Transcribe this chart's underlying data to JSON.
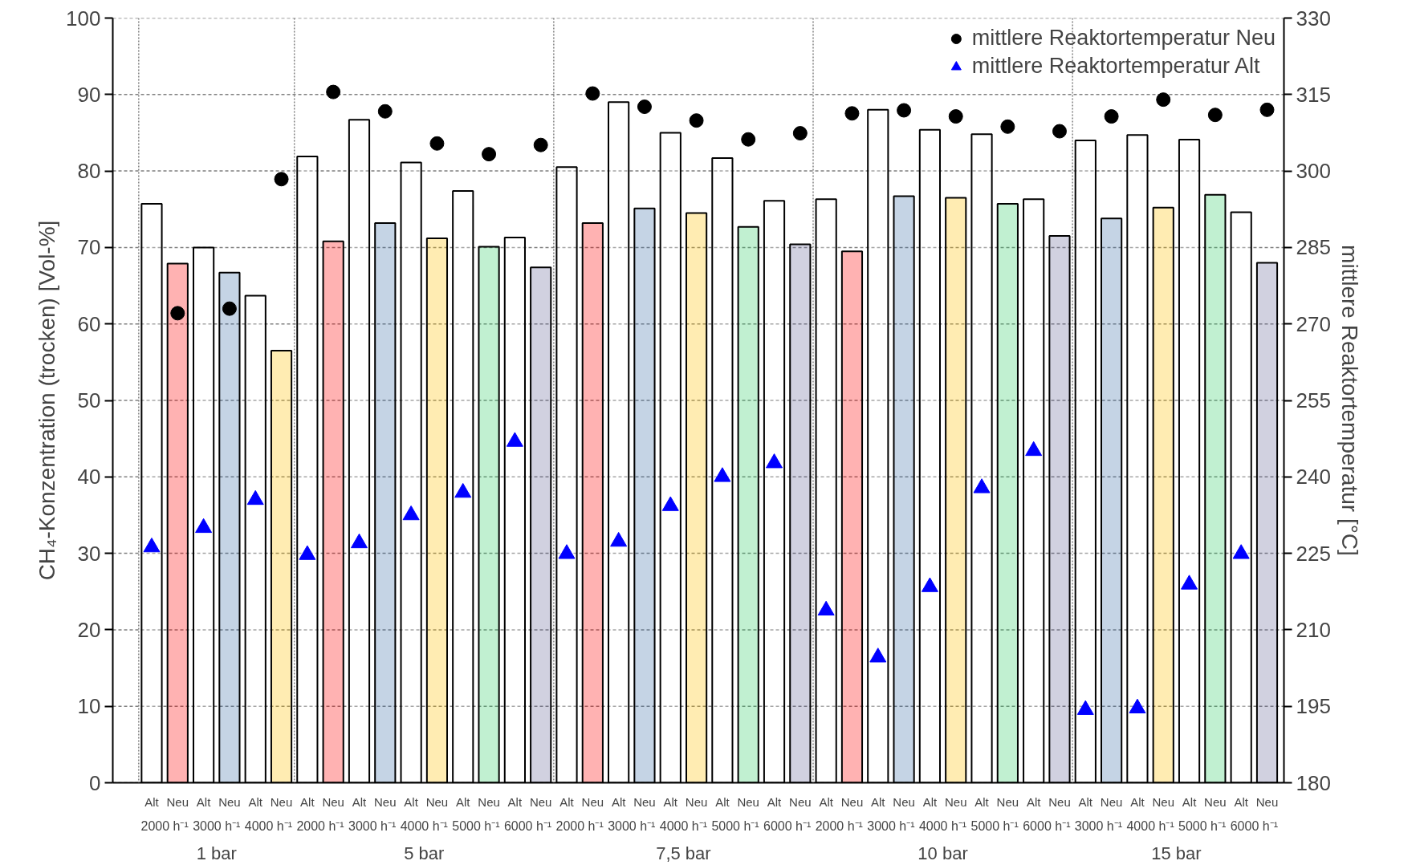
{
  "chart_data": {
    "type": "bar",
    "ylabel": "CH₄-Konzentration (trocken) [Vol-%]",
    "y2label": "mittlere Reaktortemperatur [°C]",
    "legend": "top right",
    "grid": "y",
    "categories": [
      "Alt",
      "Neu",
      "Alt",
      "Neu",
      "Alt",
      "Neu",
      "Alt",
      "Neu",
      "Alt",
      "Neu",
      "Alt",
      "Neu",
      "Alt",
      "Neu",
      "Alt",
      "Neu",
      "Alt",
      "Neu",
      "Alt",
      "Neu",
      "Alt",
      "Neu",
      "Alt",
      "Neu",
      "Alt",
      "Neu",
      "Alt",
      "Neu",
      "Alt",
      "Neu",
      "Alt",
      "Neu",
      "Alt",
      "Neu",
      "Alt",
      "Neu",
      "Alt",
      "Neu",
      "Alt",
      "Neu",
      "Alt",
      "Neu",
      "Alt",
      "Neu"
    ],
    "annotations": [
      "2000 h⁻¹",
      "3000 h⁻¹",
      "4000 h⁻¹",
      "2000 h⁻¹",
      "3000 h⁻¹",
      "4000 h⁻¹",
      "5000 h⁻¹",
      "6000 h⁻¹",
      "2000 h⁻¹",
      "3000 h⁻¹",
      "4000 h⁻¹",
      "5000 h⁻¹",
      "6000 h⁻¹",
      "2000 h⁻¹",
      "3000 h⁻¹",
      "4000 h⁻¹",
      "5000 h⁻¹",
      "6000 h⁻¹",
      "3000 h⁻¹",
      "4000 h⁻¹",
      "5000 h⁻¹",
      "6000 h⁻¹",
      "1 bar",
      "5 bar",
      "7,5 bar",
      "10 bar",
      "15 bar"
    ],
    "ylim": [
      0,
      100
    ],
    "yticks": [
      0,
      10,
      20,
      30,
      40,
      50,
      60,
      70,
      80,
      90,
      100
    ],
    "y2lim": [
      180,
      330
    ],
    "y2ticks": [
      180,
      195,
      210,
      225,
      240,
      255,
      270,
      285,
      300,
      315,
      330
    ],
    "series": [
      {
        "color": "#ffffff",
        "values": [
          75.7,
          null,
          70.0,
          null,
          63.7,
          null,
          81.9,
          null,
          86.7,
          null,
          81.1,
          null,
          77.4,
          null,
          71.3,
          null,
          80.5,
          null,
          89.0,
          null,
          85.0,
          null,
          81.7,
          null,
          76.1,
          null,
          76.3,
          null,
          88.0,
          null,
          85.4,
          null,
          84.8,
          null,
          76.3,
          null,
          84.0,
          null,
          84.7,
          null,
          84.1,
          null,
          74.6,
          null
        ]
      },
      {
        "colors": [
          null,
          "#ff0000",
          null,
          "#3f6fa8",
          null,
          "#ffc000",
          null,
          "#ff0000",
          null,
          "#3f6fa8",
          null,
          "#ffc000",
          null,
          "#33cc66",
          null,
          "#666699",
          null,
          "#ff0000",
          null,
          "#3f6fa8",
          null,
          "#ffc000",
          null,
          "#33cc66",
          null,
          "#666699",
          null,
          "#ff0000",
          null,
          "#3f6fa8",
          null,
          "#ffc000",
          null,
          "#33cc66",
          null,
          "#666699",
          null,
          "#3f6fa8",
          null,
          "#ffc000",
          null,
          "#33cc66",
          null,
          "#666699"
        ],
        "values": [
          null,
          67.9,
          null,
          66.7,
          null,
          56.5,
          null,
          70.8,
          null,
          73.2,
          null,
          71.2,
          null,
          70.1,
          null,
          67.4,
          null,
          73.2,
          null,
          75.1,
          null,
          74.5,
          null,
          72.7,
          null,
          70.4,
          null,
          69.5,
          null,
          76.7,
          null,
          76.5,
          null,
          75.7,
          null,
          71.5,
          null,
          73.8,
          null,
          75.2,
          null,
          76.9,
          null,
          68.0
        ]
      },
      {
        "type": "scatter",
        "name": "mittlere Reaktortemperatur Neu",
        "marker": "circle",
        "axis": "y2",
        "color": "#000000",
        "values": [
          null,
          272.1,
          null,
          273.0,
          null,
          298.4,
          null,
          315.5,
          null,
          311.7,
          null,
          305.4,
          null,
          303.3,
          null,
          305.1,
          null,
          315.2,
          null,
          312.6,
          null,
          309.9,
          null,
          306.2,
          null,
          307.4,
          null,
          311.3,
          null,
          311.9,
          null,
          310.7,
          null,
          308.7,
          null,
          307.8,
          null,
          310.7,
          null,
          314.0,
          null,
          311.0,
          null,
          312.0
        ]
      },
      {
        "type": "scatter",
        "name": "mittlere Reaktortemperatur Alt",
        "marker": "triangle",
        "axis": "y2",
        "color": "#0000ff",
        "values": [
          226.2,
          null,
          230.0,
          null,
          235.5,
          null,
          224.7,
          null,
          227.0,
          null,
          232.5,
          null,
          236.9,
          null,
          246.9,
          null,
          224.9,
          null,
          227.3,
          null,
          234.3,
          null,
          240.0,
          null,
          242.7,
          null,
          213.8,
          null,
          204.6,
          null,
          218.4,
          null,
          237.8,
          null,
          245.1,
          null,
          194.3,
          null,
          194.6,
          null,
          218.9,
          null,
          224.9,
          null
        ]
      }
    ]
  }
}
